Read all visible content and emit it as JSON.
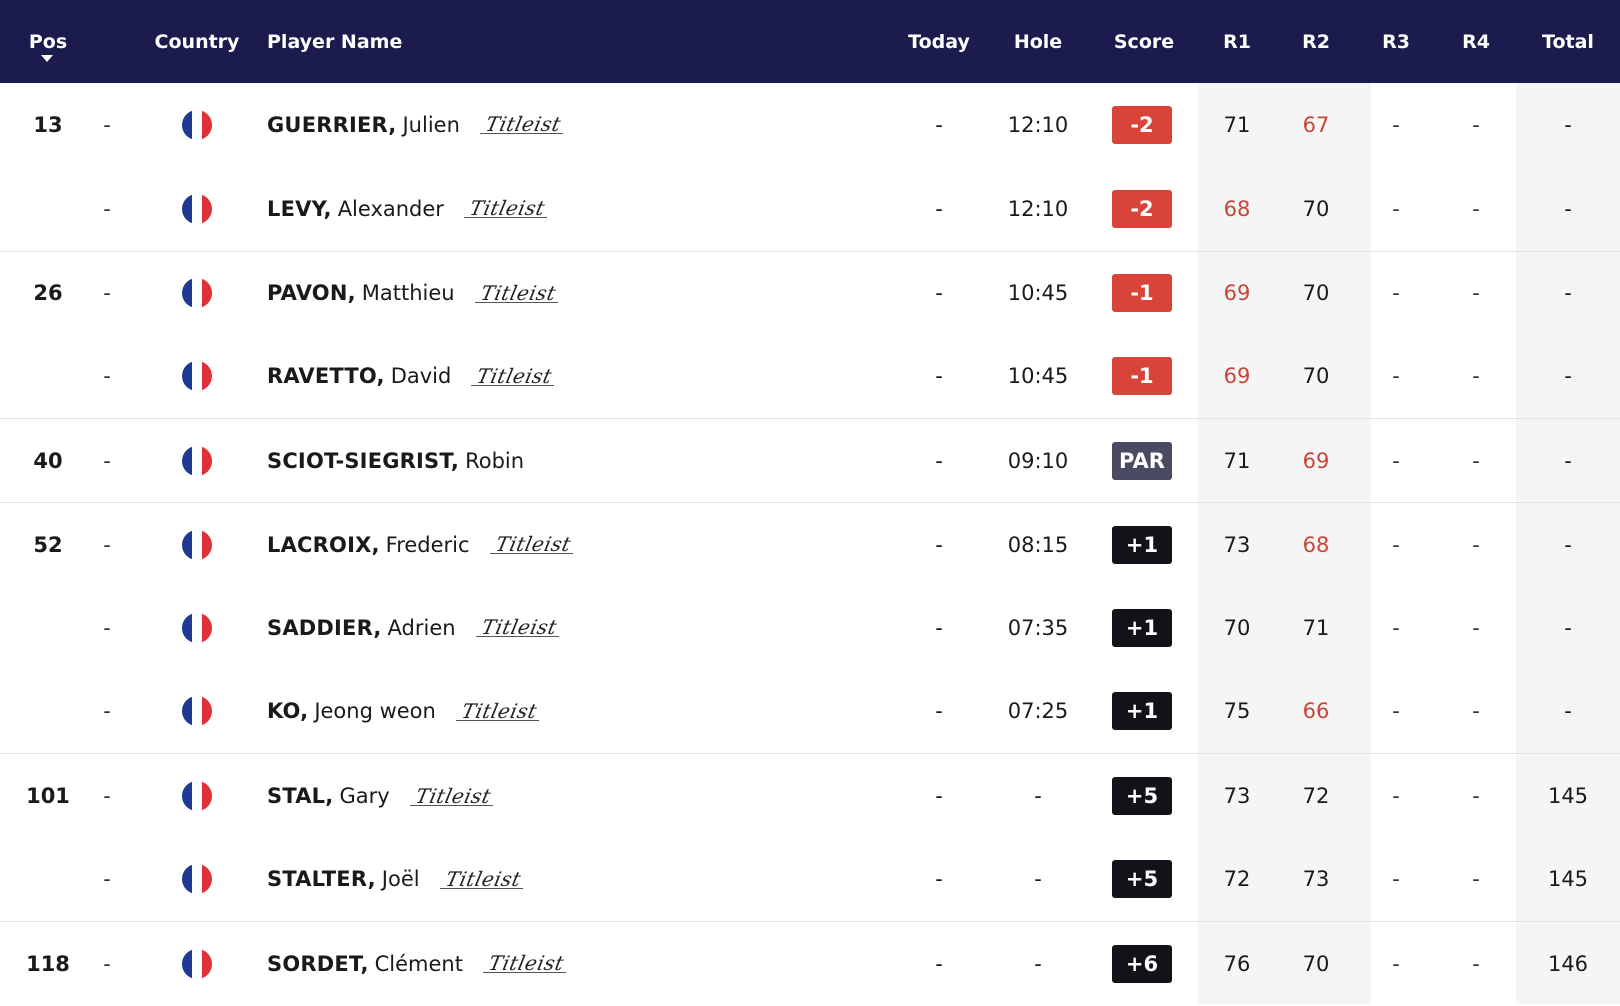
{
  "header": {
    "pos": "Pos",
    "country": "Country",
    "player_name": "Player Name",
    "today": "Today",
    "hole": "Hole",
    "score": "Score",
    "r1": "R1",
    "r2": "R2",
    "r3": "R3",
    "r4": "R4",
    "total": "Total"
  },
  "colors": {
    "header_bg": "#1b1b4e",
    "under_par": "#d8433a",
    "par": "#4a4a63",
    "over_par": "#121218",
    "red_round": "#c8453a"
  },
  "rows": [
    {
      "pos": "13",
      "move": "-",
      "country": "flag-france-icon",
      "surname": "GUERRIER,",
      "given": "Julien",
      "brand": "Titleist",
      "today": "-",
      "hole": "12:10",
      "score": "-2",
      "score_type": "under",
      "r1": "71",
      "r1_red": false,
      "r2": "67",
      "r2_red": true,
      "r3": "-",
      "r4": "-",
      "total": "-"
    },
    {
      "pos": "",
      "move": "-",
      "country": "flag-france-icon",
      "surname": "LEVY,",
      "given": "Alexander",
      "brand": "Titleist",
      "today": "-",
      "hole": "12:10",
      "score": "-2",
      "score_type": "under",
      "r1": "68",
      "r1_red": true,
      "r2": "70",
      "r2_red": false,
      "r3": "-",
      "r4": "-",
      "total": "-"
    },
    {
      "pos": "26",
      "move": "-",
      "country": "flag-france-icon",
      "surname": "PAVON,",
      "given": "Matthieu",
      "brand": "Titleist",
      "today": "-",
      "hole": "10:45",
      "score": "-1",
      "score_type": "under",
      "r1": "69",
      "r1_red": true,
      "r2": "70",
      "r2_red": false,
      "r3": "-",
      "r4": "-",
      "total": "-"
    },
    {
      "pos": "",
      "move": "-",
      "country": "flag-france-icon",
      "surname": "RAVETTO,",
      "given": "David",
      "brand": "Titleist",
      "today": "-",
      "hole": "10:45",
      "score": "-1",
      "score_type": "under",
      "r1": "69",
      "r1_red": true,
      "r2": "70",
      "r2_red": false,
      "r3": "-",
      "r4": "-",
      "total": "-"
    },
    {
      "pos": "40",
      "move": "-",
      "country": "flag-france-icon",
      "surname": "SCIOT-SIEGRIST,",
      "given": "Robin",
      "brand": "",
      "today": "-",
      "hole": "09:10",
      "score": "PAR",
      "score_type": "par",
      "r1": "71",
      "r1_red": false,
      "r2": "69",
      "r2_red": true,
      "r3": "-",
      "r4": "-",
      "total": "-"
    },
    {
      "pos": "52",
      "move": "-",
      "country": "flag-france-icon",
      "surname": "LACROIX,",
      "given": "Frederic",
      "brand": "Titleist",
      "today": "-",
      "hole": "08:15",
      "score": "+1",
      "score_type": "over",
      "r1": "73",
      "r1_red": false,
      "r2": "68",
      "r2_red": true,
      "r3": "-",
      "r4": "-",
      "total": "-"
    },
    {
      "pos": "",
      "move": "-",
      "country": "flag-france-icon",
      "surname": "SADDIER,",
      "given": "Adrien",
      "brand": "Titleist",
      "today": "-",
      "hole": "07:35",
      "score": "+1",
      "score_type": "over",
      "r1": "70",
      "r1_red": false,
      "r2": "71",
      "r2_red": false,
      "r3": "-",
      "r4": "-",
      "total": "-"
    },
    {
      "pos": "",
      "move": "-",
      "country": "flag-france-icon",
      "surname": "KO,",
      "given": "Jeong weon",
      "brand": "Titleist",
      "today": "-",
      "hole": "07:25",
      "score": "+1",
      "score_type": "over",
      "r1": "75",
      "r1_red": false,
      "r2": "66",
      "r2_red": true,
      "r3": "-",
      "r4": "-",
      "total": "-"
    },
    {
      "pos": "101",
      "move": "-",
      "country": "flag-france-icon",
      "surname": "STAL,",
      "given": "Gary",
      "brand": "Titleist",
      "today": "-",
      "hole": "-",
      "score": "+5",
      "score_type": "over",
      "r1": "73",
      "r1_red": false,
      "r2": "72",
      "r2_red": false,
      "r3": "-",
      "r4": "-",
      "total": "145"
    },
    {
      "pos": "",
      "move": "-",
      "country": "flag-france-icon",
      "surname": "STALTER,",
      "given": "Joël",
      "brand": "Titleist",
      "today": "-",
      "hole": "-",
      "score": "+5",
      "score_type": "over",
      "r1": "72",
      "r1_red": false,
      "r2": "73",
      "r2_red": false,
      "r3": "-",
      "r4": "-",
      "total": "145"
    },
    {
      "pos": "118",
      "move": "-",
      "country": "flag-france-icon",
      "surname": "SORDET,",
      "given": "Clément",
      "brand": "Titleist",
      "today": "-",
      "hole": "-",
      "score": "+6",
      "score_type": "over",
      "r1": "76",
      "r1_red": false,
      "r2": "70",
      "r2_red": false,
      "r3": "-",
      "r4": "-",
      "total": "146"
    }
  ]
}
